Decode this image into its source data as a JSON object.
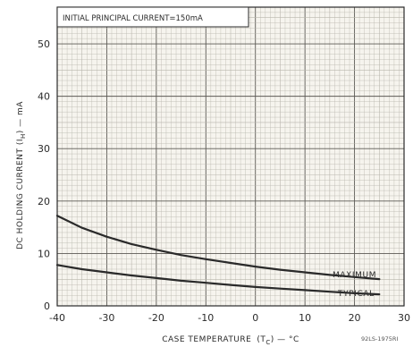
{
  "chart_data": {
    "type": "line",
    "title": "",
    "annotation": "INITIAL PRINCIPAL CURRENT=150mA",
    "xlabel": "CASE TEMPERATURE (T_C) — °C",
    "xlabel_main": "CASE TEMPERATURE",
    "xlabel_symbol": "(T",
    "xlabel_subscript": "C",
    "xlabel_suffix": ") — °C",
    "ylabel": "DC HOLDING CURRENT (I_H) — mA",
    "ylabel_main": "DC HOLDING CURRENT (I",
    "ylabel_subscript": "H",
    "ylabel_suffix": ") — mA",
    "xlim": [
      -40,
      30
    ],
    "ylim": [
      0,
      57
    ],
    "xticks": [
      -40,
      -30,
      -20,
      -10,
      0,
      10,
      20,
      30
    ],
    "xtick_labels": [
      "-40",
      "-30",
      "-20",
      "-10",
      "0",
      "10",
      "20",
      "30"
    ],
    "yticks": [
      0,
      10,
      20,
      30,
      40,
      50
    ],
    "ytick_labels": [
      "0",
      "10",
      "20",
      "30",
      "40",
      "50"
    ],
    "grid": true,
    "series": [
      {
        "name": "MAXIMUM",
        "x": [
          -40,
          -35,
          -30,
          -25,
          -20,
          -15,
          -10,
          -5,
          0,
          5,
          10,
          15,
          20,
          25
        ],
        "y": [
          17.2,
          14.9,
          13.2,
          11.8,
          10.7,
          9.7,
          8.9,
          8.2,
          7.5,
          6.9,
          6.4,
          5.9,
          5.5,
          5.1
        ]
      },
      {
        "name": "TYPICAL",
        "x": [
          -40,
          -35,
          -30,
          -25,
          -20,
          -15,
          -10,
          -5,
          0,
          5,
          10,
          15,
          20,
          25
        ],
        "y": [
          7.8,
          7.0,
          6.4,
          5.8,
          5.3,
          4.8,
          4.4,
          4.0,
          3.6,
          3.3,
          3.0,
          2.7,
          2.4,
          2.2
        ]
      }
    ],
    "figure_id": "92LS-1975RI",
    "colors": {
      "background": "#ffffff",
      "paper": "#f6f4ee",
      "grid": "#b9b6ad",
      "grid_major": "#5c5a55",
      "ink": "#2a2a2a"
    }
  }
}
